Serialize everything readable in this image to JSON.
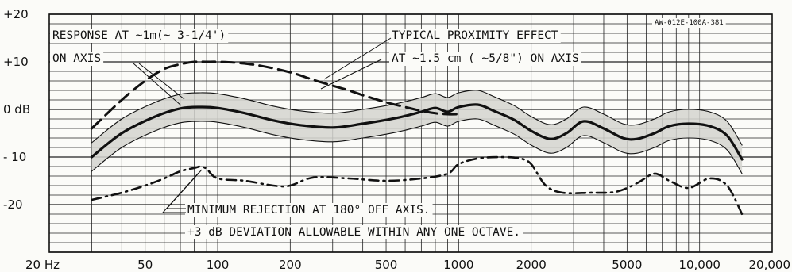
{
  "chart_data": {
    "type": "line",
    "x_scale": "log",
    "xlim": [
      20,
      20000
    ],
    "ylim": [
      -30,
      20
    ],
    "y_ticks": [
      {
        "value": 20,
        "label": "+20"
      },
      {
        "value": 10,
        "label": "+10"
      },
      {
        "value": 0,
        "label": "0 dB"
      },
      {
        "value": -10,
        "label": "- 10"
      },
      {
        "value": -20,
        "label": "-20"
      }
    ],
    "x_ticks": [
      {
        "value": 20,
        "label": "20 Hz"
      },
      {
        "value": 50,
        "label": "50"
      },
      {
        "value": 100,
        "label": "100"
      },
      {
        "value": 200,
        "label": "200"
      },
      {
        "value": 500,
        "label": "500"
      },
      {
        "value": 1000,
        "label": "1000"
      },
      {
        "value": 2000,
        "label": "2000"
      },
      {
        "value": 5000,
        "label": "5000"
      },
      {
        "value": 10000,
        "label": "10,000"
      },
      {
        "value": 20000,
        "label": "20,000"
      }
    ],
    "grid": true,
    "code_label": "AW-012E-100A-381",
    "annotations": {
      "response_line1": "RESPONSE AT ∼1m(∼ 3-1/4')",
      "response_line2": "ON AXIS",
      "proximity_line1": "TYPICAL PROXIMITY EFFECT",
      "proximity_line2": "AT ∼1.5 cm ( ∼5/8\") ON AXIS",
      "rejection": "MINIMUM REJECTION AT 180° OFF AXIS.",
      "deviation": "+3 dB DEVIATION ALLOWABLE WITHIN ANY ONE OCTAVE."
    },
    "series": [
      {
        "style": "solid-thick",
        "x": [
          30,
          40,
          55,
          70,
          85,
          100,
          130,
          170,
          220,
          300,
          400,
          550,
          700,
          800,
          900,
          1000,
          1200,
          1400,
          1700,
          2000,
          2400,
          2800,
          3300,
          4000,
          4800,
          5500,
          6500,
          7500,
          9000,
          11000,
          13000,
          15000
        ],
        "y": [
          -10,
          -5,
          -1.5,
          0.2,
          0.5,
          0.3,
          -0.8,
          -2.3,
          -3.3,
          -3.8,
          -3.0,
          -1.8,
          -0.5,
          0.3,
          -0.5,
          0.5,
          1.0,
          -0.3,
          -2.2,
          -4.5,
          -6.2,
          -5.0,
          -2.5,
          -4.0,
          -6.0,
          -6.2,
          -5.0,
          -3.5,
          -3.0,
          -3.5,
          -5.5,
          -10.5
        ]
      },
      {
        "style": "solid-thin",
        "x": [
          30,
          40,
          55,
          70,
          85,
          100,
          130,
          170,
          220,
          300,
          400,
          550,
          700,
          800,
          900,
          1000,
          1200,
          1400,
          1700,
          2000,
          2400,
          2800,
          3300,
          4000,
          4800,
          5500,
          6500,
          7500,
          9000,
          11000,
          13000,
          15000
        ],
        "y": [
          -7,
          -2,
          1.5,
          3.2,
          3.5,
          3.3,
          2.2,
          0.7,
          -0.3,
          -0.8,
          0,
          1.2,
          2.5,
          3.3,
          2.5,
          3.5,
          4.0,
          2.7,
          0.8,
          -1.5,
          -3.2,
          -2.0,
          0.5,
          -1.0,
          -3.0,
          -3.2,
          -2.0,
          -0.5,
          0,
          -0.5,
          -2.5,
          -7.5
        ]
      },
      {
        "style": "solid-thin",
        "x": [
          30,
          40,
          55,
          70,
          85,
          100,
          130,
          170,
          220,
          300,
          400,
          550,
          700,
          800,
          900,
          1000,
          1200,
          1400,
          1700,
          2000,
          2400,
          2800,
          3300,
          4000,
          4800,
          5500,
          6500,
          7500,
          9000,
          11000,
          13000,
          15000
        ],
        "y": [
          -13,
          -8,
          -4.5,
          -2.8,
          -2.5,
          -2.7,
          -3.8,
          -5.3,
          -6.3,
          -6.8,
          -6.0,
          -4.8,
          -3.5,
          -2.7,
          -3.5,
          -2.5,
          -2.0,
          -3.3,
          -5.2,
          -7.5,
          -9.2,
          -8.0,
          -5.5,
          -7.0,
          -9.0,
          -9.2,
          -8.0,
          -6.5,
          -6.0,
          -6.5,
          -8.5,
          -13.5
        ]
      },
      {
        "style": "dashed",
        "x": [
          30,
          40,
          50,
          60,
          70,
          80,
          90,
          100,
          120,
          150,
          200,
          250,
          300,
          350,
          400,
          500,
          600,
          700,
          800,
          900,
          1000
        ],
        "y": [
          -4,
          2,
          6,
          8.5,
          9.5,
          10,
          10,
          10,
          9.8,
          9.2,
          7.8,
          6.2,
          5,
          4,
          3,
          1.5,
          0.5,
          -0.3,
          -0.8,
          -1,
          -1
        ]
      },
      {
        "style": "dash-dot",
        "x": [
          30,
          40,
          50,
          60,
          70,
          80,
          85,
          90,
          100,
          130,
          170,
          200,
          250,
          350,
          500,
          700,
          900,
          1000,
          1200,
          1500,
          1800,
          2000,
          2300,
          2700,
          3500,
          4500,
          5500,
          6500,
          7500,
          9000,
          11000,
          13000,
          15000
        ],
        "y": [
          -19,
          -17.5,
          -16,
          -14.5,
          -13,
          -12.3,
          -12,
          -12.5,
          -14.5,
          -15,
          -16,
          -16,
          -14.3,
          -14.5,
          -15,
          -14.5,
          -13.5,
          -11.5,
          -10.3,
          -10.0,
          -10.3,
          -11.5,
          -16,
          -17.5,
          -17.5,
          -17.3,
          -15.5,
          -13.5,
          -15,
          -16.5,
          -14.5,
          -16,
          -22
        ]
      }
    ]
  }
}
